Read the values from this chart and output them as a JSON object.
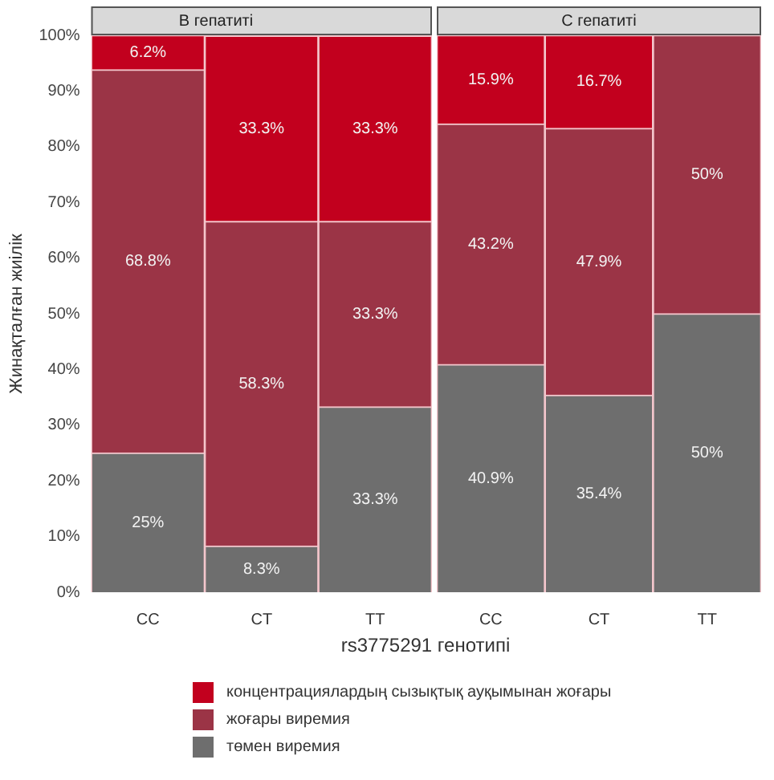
{
  "chart_data": [
    {
      "type": "bar",
      "stacked": true,
      "title": "В гепатиті",
      "ylabel": "Жинақталған жиілік",
      "xlabel": "rs3775291 генотипі",
      "categories": [
        "CC",
        "CT",
        "TT"
      ],
      "ylim": [
        0,
        100
      ],
      "yticks": [
        {
          "value": 0,
          "label": "0%"
        },
        {
          "value": 10,
          "label": "10%"
        },
        {
          "value": 20,
          "label": "20%"
        },
        {
          "value": 30,
          "label": "30%"
        },
        {
          "value": 40,
          "label": "40%"
        },
        {
          "value": 50,
          "label": "50%"
        },
        {
          "value": 60,
          "label": "60%"
        },
        {
          "value": 70,
          "label": "70%"
        },
        {
          "value": 80,
          "label": "80%"
        },
        {
          "value": 90,
          "label": "90%"
        },
        {
          "value": 100,
          "label": "100%"
        }
      ],
      "grid": false,
      "legend": "bottom",
      "series": [
        {
          "name": "төмен виремия",
          "color": "#6e6e6e",
          "values": [
            25,
            8.3,
            33.3
          ],
          "value_labels": [
            "25%",
            "8.3%",
            "33.3%"
          ]
        },
        {
          "name": "жоғары виремия",
          "color": "#9b3446",
          "values": [
            68.8,
            58.3,
            33.3
          ],
          "value_labels": [
            "68.8%",
            "58.3%",
            "33.3%"
          ]
        },
        {
          "name": "концентрациялардың сызықтық ауқымынан жоғары",
          "color": "#c2001e",
          "values": [
            6.2,
            33.3,
            33.3
          ],
          "value_labels": [
            "6.2%",
            "33.3%",
            "33.3%"
          ]
        }
      ]
    },
    {
      "type": "bar",
      "stacked": true,
      "title": "С гепатиті",
      "categories": [
        "CC",
        "CT",
        "TT"
      ],
      "ylim": [
        0,
        100
      ],
      "tick_labels": "x",
      "grid": false,
      "series": [
        {
          "color": "#6e6e6e",
          "values": [
            40.9,
            35.4,
            50
          ],
          "value_labels": [
            "40.9%",
            "35.4%",
            "50%"
          ]
        },
        {
          "color": "#9b3446",
          "values": [
            43.2,
            47.9,
            50
          ],
          "value_labels": [
            "43.2%",
            "47.9%",
            "50%"
          ]
        },
        {
          "color": "#c2001e",
          "values": [
            15.9,
            16.7,
            null
          ],
          "value_labels": [
            "15.9%",
            "16.7%",
            null
          ]
        }
      ]
    }
  ]
}
